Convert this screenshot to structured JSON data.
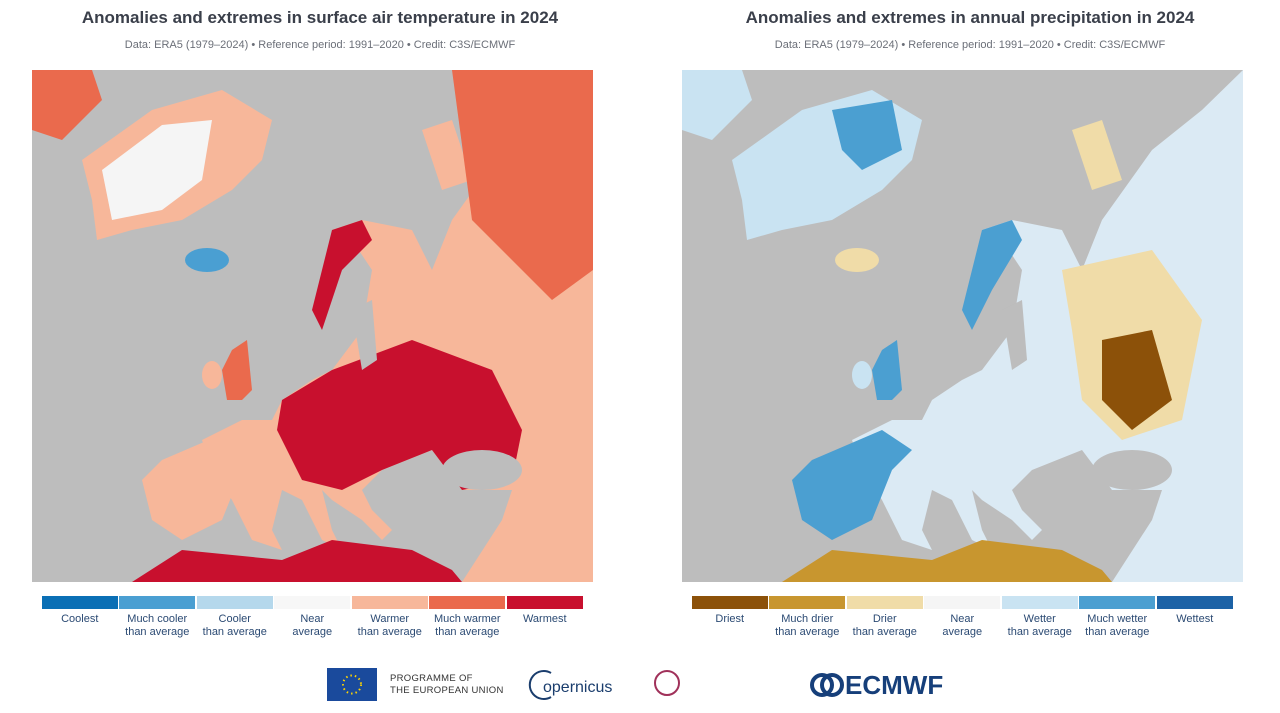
{
  "panels": [
    {
      "title": "Anomalies and extremes in surface air temperature in 2024",
      "subtitle": "Data: ERA5 (1979–2024) • Reference period: 1991–2020 • Credit: C3S/ECMWF",
      "legend": [
        {
          "label": "Coolest",
          "color": "#0a6fb5"
        },
        {
          "label": "Much cooler\nthan average",
          "color": "#4a9fd2"
        },
        {
          "label": "Cooler\nthan average",
          "color": "#b5d8ec"
        },
        {
          "label": "Near\naverage",
          "color": "#f7f7f7"
        },
        {
          "label": "Warmer\nthan average",
          "color": "#f7b79a"
        },
        {
          "label": "Much warmer\nthan average",
          "color": "#ea6a4d"
        },
        {
          "label": "Warmest",
          "color": "#c8102e"
        }
      ]
    },
    {
      "title": "Anomalies and extremes in annual precipitation in 2024",
      "subtitle": "Data: ERA5 (1979–2024) • Reference period: 1991–2020 • Credit: C3S/ECMWF",
      "legend": [
        {
          "label": "Driest",
          "color": "#8c5109"
        },
        {
          "label": "Much drier\nthan average",
          "color": "#c8962f"
        },
        {
          "label": "Drier\nthan average",
          "color": "#f0dca8"
        },
        {
          "label": "Near\naverage",
          "color": "#f5f5f5"
        },
        {
          "label": "Wetter\nthan average",
          "color": "#c9e3f2"
        },
        {
          "label": "Much wetter\nthan average",
          "color": "#4b9fd1"
        },
        {
          "label": "Wettest",
          "color": "#1c62a6"
        }
      ]
    }
  ],
  "footer": {
    "eu": "PROGRAMME OF\nTHE EUROPEAN UNION",
    "copernicus": "opernicus",
    "ecmwf": "ECMWF"
  }
}
